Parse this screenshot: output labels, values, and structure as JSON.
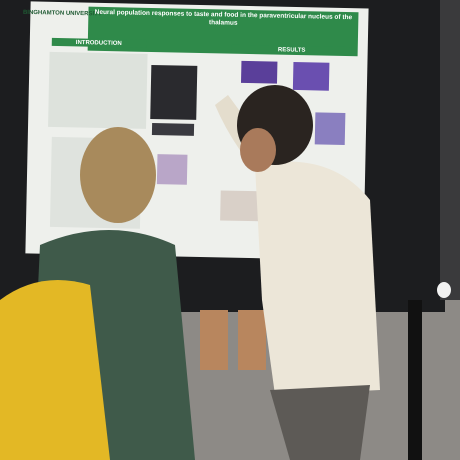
{
  "poster": {
    "logo": "BINGHAMTON UNIVERSITY",
    "title": "Neural population responses to taste and food in the paraventricular nucleus of the thalamus",
    "sections": [
      "INTRODUCTION",
      "RESULTS"
    ]
  }
}
